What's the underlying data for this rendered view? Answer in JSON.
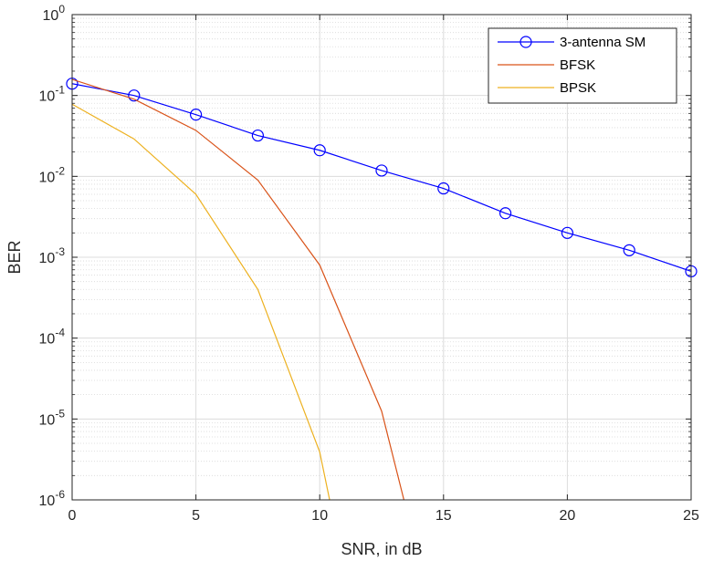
{
  "chart_data": {
    "type": "line",
    "title": "",
    "xlabel": "SNR, in dB",
    "ylabel": "BER",
    "xlim": [
      0,
      25
    ],
    "ylim": [
      1e-06,
      1
    ],
    "yscale": "log",
    "grid": true,
    "minor_grid": true,
    "legend_position": "top-right",
    "x_ticks": [
      "0",
      "5",
      "10",
      "15",
      "20",
      "25"
    ],
    "y_ticks": [
      {
        "base": "10",
        "exp": "0"
      },
      {
        "base": "10",
        "exp": "-1"
      },
      {
        "base": "10",
        "exp": "-2"
      },
      {
        "base": "10",
        "exp": "-3"
      },
      {
        "base": "10",
        "exp": "-4"
      },
      {
        "base": "10",
        "exp": "-5"
      },
      {
        "base": "10",
        "exp": "-6"
      }
    ],
    "series": [
      {
        "name": "3-antenna SM",
        "color": "#0000ff",
        "marker": "circle",
        "x": [
          0,
          2.5,
          5,
          7.5,
          10,
          12.5,
          15,
          17.5,
          20,
          22.5,
          25
        ],
        "y": [
          0.14,
          0.1,
          0.058,
          0.032,
          0.021,
          0.0118,
          0.0071,
          0.0035,
          0.002,
          0.00122,
          0.00067
        ]
      },
      {
        "name": "BFSK",
        "color": "#d95319",
        "marker": "none",
        "x": [
          0,
          2.5,
          5,
          7.5,
          10,
          12.5,
          13.4
        ],
        "y": [
          0.158,
          0.09,
          0.037,
          0.009,
          0.0008,
          1.25e-05,
          1e-06
        ]
      },
      {
        "name": "BPSK",
        "color": "#edb120",
        "marker": "none",
        "x": [
          0,
          2.5,
          5,
          7.5,
          10,
          10.4
        ],
        "y": [
          0.078,
          0.029,
          0.006,
          0.0004,
          3.9e-06,
          1e-06
        ]
      }
    ]
  }
}
